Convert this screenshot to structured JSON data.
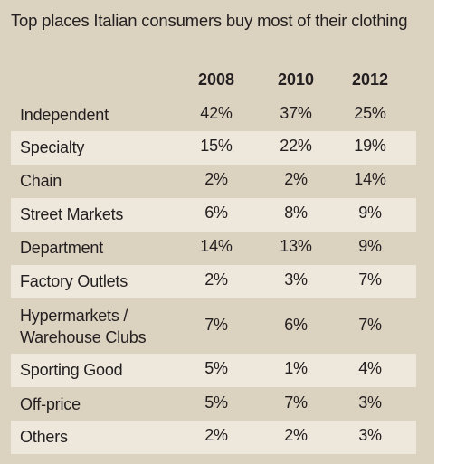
{
  "chart_data": {
    "type": "table",
    "title": "Top places Italian consumers buy most of their clothing",
    "columns": [
      "2008",
      "2010",
      "2012"
    ],
    "rows": [
      {
        "label": "Independent",
        "values": [
          "42%",
          "37%",
          "25%"
        ]
      },
      {
        "label": "Specialty",
        "values": [
          "15%",
          "22%",
          "19%"
        ]
      },
      {
        "label": "Chain",
        "values": [
          "2%",
          "2%",
          "14%"
        ]
      },
      {
        "label": "Street Markets",
        "values": [
          "6%",
          "8%",
          "9%"
        ]
      },
      {
        "label": "Department",
        "values": [
          "14%",
          "13%",
          "9%"
        ]
      },
      {
        "label": "Factory Outlets",
        "values": [
          "2%",
          "3%",
          "7%"
        ]
      },
      {
        "label": "Hypermarkets / Warehouse Clubs",
        "label_lines": [
          "Hypermarkets /",
          "Warehouse Clubs"
        ],
        "values": [
          "7%",
          "6%",
          "7%"
        ]
      },
      {
        "label": "Sporting Good",
        "values": [
          "5%",
          "1%",
          "4%"
        ]
      },
      {
        "label": "Off-price",
        "values": [
          "5%",
          "7%",
          "3%"
        ]
      },
      {
        "label": "Others",
        "values": [
          "2%",
          "2%",
          "3%"
        ]
      }
    ]
  }
}
